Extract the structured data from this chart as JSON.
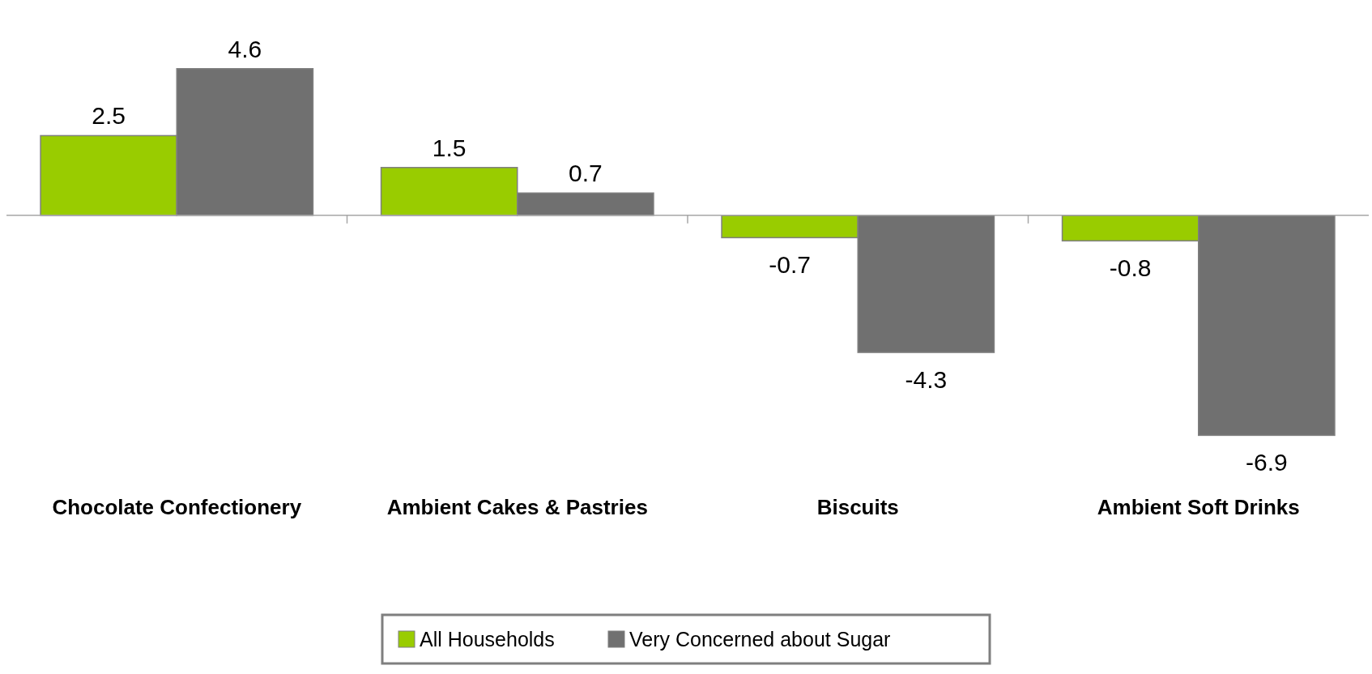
{
  "chart_data": {
    "type": "bar",
    "categories": [
      "Chocolate Confectionery",
      "Ambient Cakes & Pastries",
      "Biscuits",
      "Ambient Soft Drinks"
    ],
    "series": [
      {
        "name": "All Households",
        "color": "#99cc00",
        "values": [
          2.5,
          1.5,
          -0.7,
          -0.8
        ]
      },
      {
        "name": "Very Concerned about Sugar",
        "color": "#707070",
        "values": [
          4.6,
          0.7,
          -4.3,
          -6.9
        ]
      }
    ],
    "data_labels": true,
    "legend": "bottom"
  }
}
